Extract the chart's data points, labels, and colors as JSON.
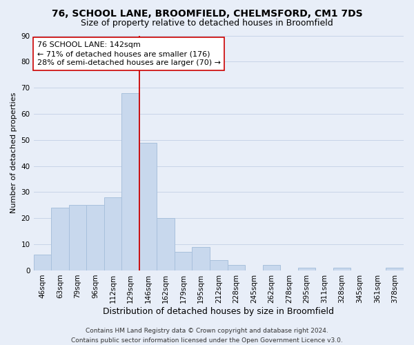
{
  "title1": "76, SCHOOL LANE, BROOMFIELD, CHELMSFORD, CM1 7DS",
  "title2": "Size of property relative to detached houses in Broomfield",
  "xlabel": "Distribution of detached houses by size in Broomfield",
  "ylabel": "Number of detached properties",
  "categories": [
    "46sqm",
    "63sqm",
    "79sqm",
    "96sqm",
    "112sqm",
    "129sqm",
    "146sqm",
    "162sqm",
    "179sqm",
    "195sqm",
    "212sqm",
    "228sqm",
    "245sqm",
    "262sqm",
    "278sqm",
    "295sqm",
    "311sqm",
    "328sqm",
    "345sqm",
    "361sqm",
    "378sqm"
  ],
  "values": [
    6,
    24,
    25,
    25,
    28,
    68,
    49,
    20,
    7,
    9,
    4,
    2,
    0,
    2,
    0,
    1,
    0,
    1,
    0,
    0,
    1
  ],
  "bar_color": "#c8d8ed",
  "bar_edge_color": "#a8c0dc",
  "vline_color": "#cc0000",
  "annotation_text": "76 SCHOOL LANE: 142sqm\n← 71% of detached houses are smaller (176)\n28% of semi-detached houses are larger (70) →",
  "annotation_box_color": "#ffffff",
  "annotation_box_edge_color": "#cc0000",
  "ylim": [
    0,
    90
  ],
  "yticks": [
    0,
    10,
    20,
    30,
    40,
    50,
    60,
    70,
    80,
    90
  ],
  "grid_color": "#c8d4e8",
  "bg_color": "#e8eef8",
  "footer": "Contains HM Land Registry data © Crown copyright and database right 2024.\nContains public sector information licensed under the Open Government Licence v3.0.",
  "title1_fontsize": 10,
  "title2_fontsize": 9,
  "xlabel_fontsize": 9,
  "ylabel_fontsize": 8,
  "tick_fontsize": 7.5,
  "annotation_fontsize": 8,
  "footer_fontsize": 6.5
}
